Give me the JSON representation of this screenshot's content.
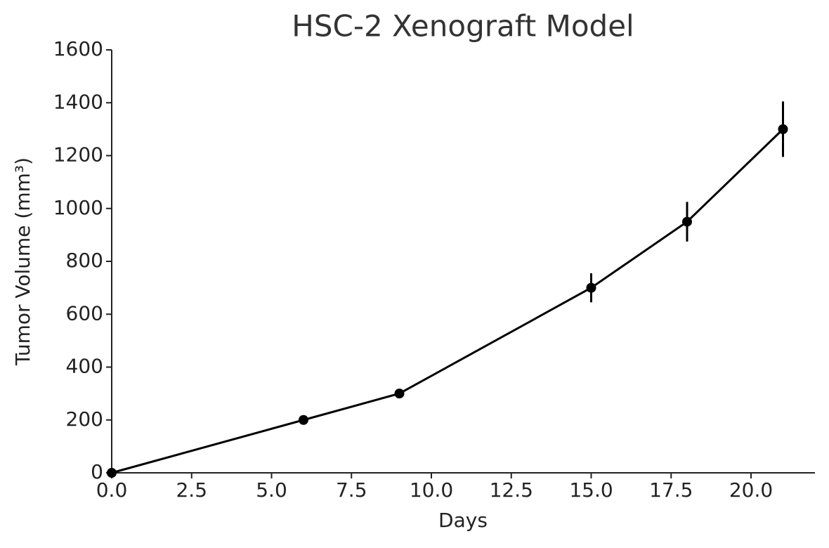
{
  "chart_data": {
    "type": "line",
    "title": "HSC-2 Xenograft Model",
    "x_label": "Days",
    "y_label": "Tumor Volume (mm³)",
    "x": [
      0,
      6,
      9,
      15,
      18,
      21
    ],
    "series": [
      {
        "color": "#000000",
        "values": [
          0,
          200,
          300,
          700,
          950,
          1300
        ],
        "errors": [
          0,
          10,
          15,
          55,
          75,
          105
        ]
      }
    ],
    "xlim": [
      0,
      22
    ],
    "xticks": [
      {
        "value": 0,
        "label": "0.0"
      },
      {
        "value": 2.5,
        "label": "2.5"
      },
      {
        "value": 5,
        "label": "5.0"
      },
      {
        "value": 7.5,
        "label": "7.5"
      },
      {
        "value": 10,
        "label": "10.0"
      },
      {
        "value": 12.5,
        "label": "12.5"
      },
      {
        "value": 15,
        "label": "15.0"
      },
      {
        "value": 17.5,
        "label": "17.5"
      },
      {
        "value": 20,
        "label": "20.0"
      }
    ],
    "ylim": [
      0,
      1600
    ],
    "yticks": [
      0,
      200,
      400,
      600,
      800,
      1000,
      1200,
      1400,
      1600
    ],
    "grid": false
  }
}
